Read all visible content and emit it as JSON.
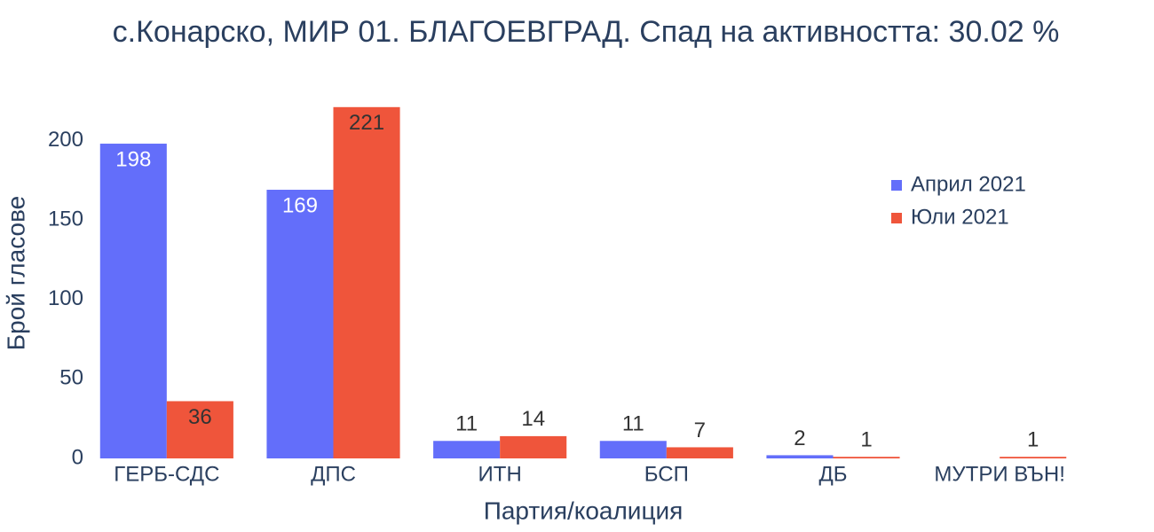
{
  "chart_data": {
    "type": "bar",
    "title": "с.Конарско, МИР 01. БЛАГОЕВГРАД. Спад на активността: 30.02 %",
    "x_label": "Партия/коалиция",
    "y_label": "Брой гласове",
    "categories": [
      "ГЕРБ-СДС",
      "ДПС",
      "ИТН",
      "БСП",
      "ДБ",
      "МУТРИ ВЪН!"
    ],
    "series": [
      {
        "name": "Април 2021",
        "color": "#636efa",
        "values": [
          198,
          169,
          11,
          11,
          2,
          null
        ]
      },
      {
        "name": "Юли 2021",
        "color": "#ef553b",
        "values": [
          36,
          221,
          14,
          7,
          1,
          1
        ]
      }
    ],
    "ylim": [
      0,
      232.6
    ],
    "yticks": [
      0,
      50,
      100,
      150,
      200
    ],
    "grid": false,
    "legend": "top-right"
  }
}
